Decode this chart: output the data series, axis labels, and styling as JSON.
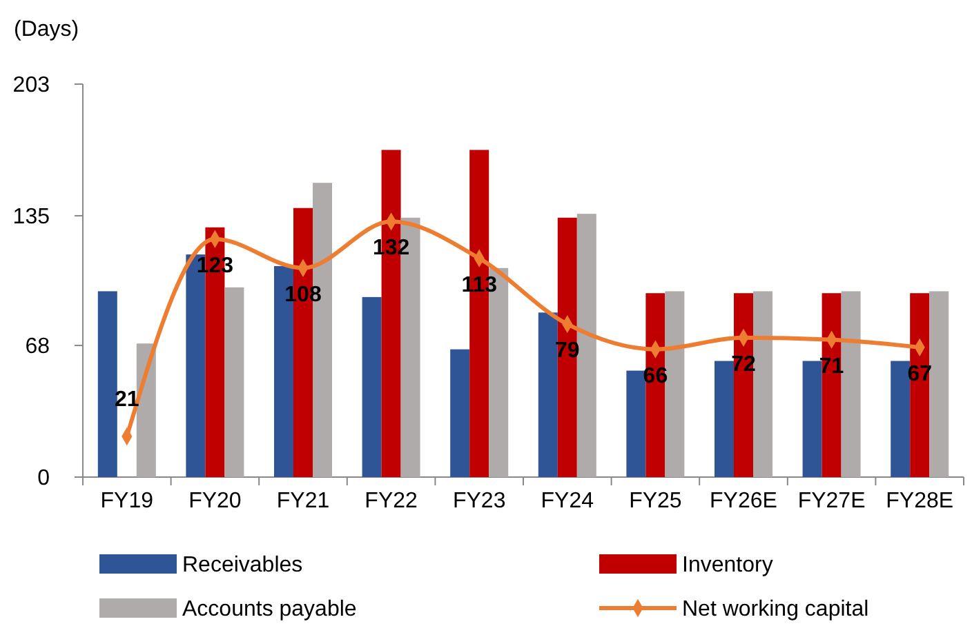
{
  "chart_data": {
    "type": "bar",
    "ylabel": "(Days)",
    "categories": [
      "FY19",
      "FY20",
      "FY21",
      "FY22",
      "FY23",
      "FY24",
      "FY25",
      "FY26E",
      "FY27E",
      "FY28E"
    ],
    "series": [
      {
        "name": "Receivables",
        "color": "#2f5597",
        "values": [
          96,
          115,
          109,
          93,
          66,
          85,
          55,
          60,
          60,
          60
        ]
      },
      {
        "name": "Inventory",
        "color": "#c00000",
        "values": [
          null,
          129,
          139,
          169,
          169,
          134,
          95,
          95,
          95,
          95
        ]
      },
      {
        "name": "Accounts payable",
        "color": "#afabab",
        "values": [
          69,
          98,
          152,
          134,
          108,
          136,
          96,
          96,
          96,
          96
        ]
      },
      {
        "name": "Net working capital",
        "type": "line",
        "color": "#ed7d31",
        "marker": "diamond",
        "values": [
          21,
          123,
          108,
          132,
          113,
          79,
          66,
          72,
          71,
          67
        ],
        "value_labels": [
          "21",
          "123",
          "108",
          "132",
          "113",
          "79",
          "66",
          "72",
          "71",
          "67"
        ]
      }
    ],
    "ylim": [
      0,
      203
    ],
    "yticks": [
      0,
      68,
      135,
      203
    ],
    "grid": false,
    "legend": "bottom"
  }
}
